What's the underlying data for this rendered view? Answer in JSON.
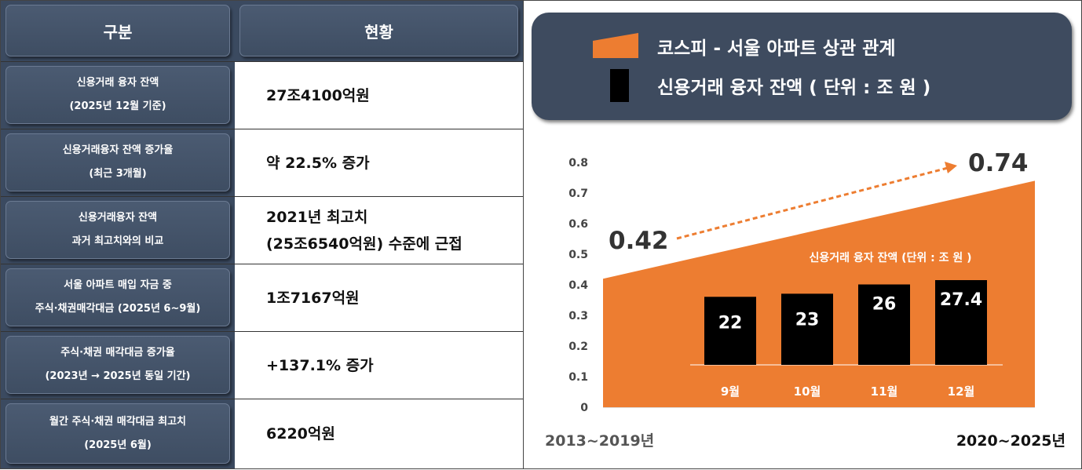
{
  "table": {
    "header": {
      "col1": "구분",
      "col2": "현황"
    },
    "rows": [
      {
        "label1": "신용거래 융자 잔액",
        "label2": "(2025년 12월 기준)",
        "value1": "27조4100억원",
        "value2": ""
      },
      {
        "label1": "신용거래융자 잔액 증가율",
        "label2": "(최근 3개월)",
        "value1": "약 22.5% 증가",
        "value2": ""
      },
      {
        "label1": "신용거래융자 잔액",
        "label2": "과거 최고치와의 비교",
        "value1": "2021년 최고치",
        "value2": "(25조6540억원) 수준에 근접"
      },
      {
        "label1": "서울 아파트 매입 자금 중",
        "label2": "주식·채권매각대금 (2025년 6~9월)",
        "value1": "1조7167억원",
        "value2": ""
      },
      {
        "label1": "주식·채권 매각대금 증가율",
        "label2": "(2023년 → 2025년 동일 기간)",
        "value1": "+137.1% 증가",
        "value2": ""
      },
      {
        "label1": "월간 주식·채권 매각대금 최고치",
        "label2": "(2025년 6월)",
        "value1": "6220억원",
        "value2": ""
      }
    ]
  },
  "legend": {
    "item1": "코스피 - 서울 아파트 상관 관계",
    "item2": "신용거래 융자 잔액 ( 단위 : 조 원 )"
  },
  "colors": {
    "orange": "#ed7d31",
    "navy": "#3e4b5f",
    "bar": "#000000"
  },
  "chart_data": [
    {
      "type": "area",
      "series_name": "코스피 - 서울 아파트 상관 관계",
      "x": [
        "2013~2019년",
        "2020~2025년"
      ],
      "values": [
        0.42,
        0.74
      ],
      "value_labels": [
        "0.42",
        "0.74"
      ],
      "ylim": [
        0,
        0.8
      ],
      "yticks": [
        "0",
        "0.1",
        "0.2",
        "0.3",
        "0.4",
        "0.5",
        "0.6",
        "0.7",
        "0.8"
      ]
    },
    {
      "type": "bar",
      "title": "신용거래 융자 잔액 (단위 : 조 원 )",
      "categories": [
        "9월",
        "10월",
        "11월",
        "12월"
      ],
      "values": [
        22,
        23,
        26,
        27.4
      ],
      "value_labels": [
        "22",
        "23",
        "26",
        "27.4"
      ]
    }
  ]
}
